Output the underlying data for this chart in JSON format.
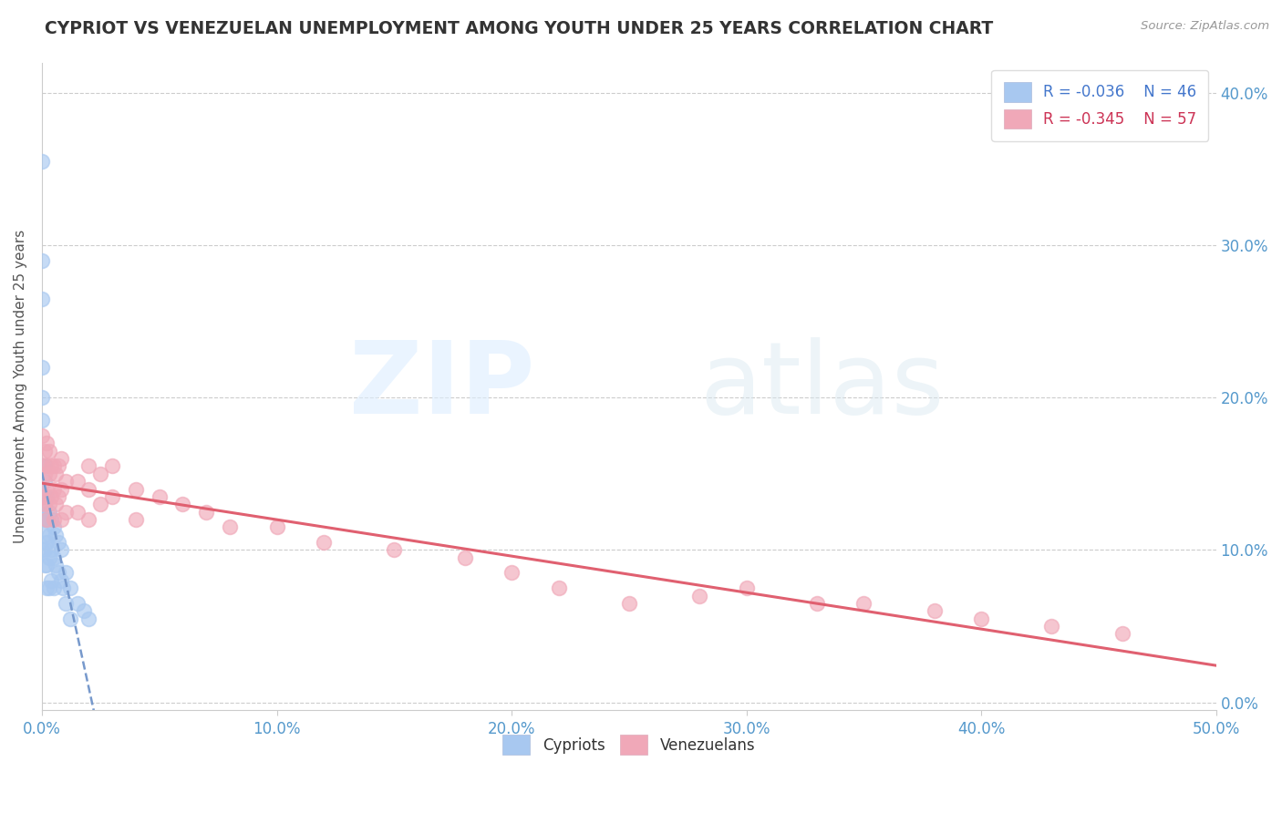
{
  "title": "CYPRIOT VS VENEZUELAN UNEMPLOYMENT AMONG YOUTH UNDER 25 YEARS CORRELATION CHART",
  "source": "Source: ZipAtlas.com",
  "ylabel": "Unemployment Among Youth under 25 years",
  "xlim": [
    0.0,
    0.5
  ],
  "ylim": [
    -0.005,
    0.42
  ],
  "cypriot_color": "#a8c8f0",
  "venezuelan_color": "#f0a8b8",
  "cypriot_line_color": "#7799cc",
  "venezuelan_line_color": "#e06070",
  "legend_r_cypriot": "R = -0.036",
  "legend_n_cypriot": "N = 46",
  "legend_r_venezuelan": "R = -0.345",
  "legend_n_venezuelan": "N = 57",
  "cypriot_x": [
    0.0,
    0.0,
    0.0,
    0.0,
    0.0,
    0.0,
    0.0,
    0.0,
    0.0,
    0.0,
    0.001,
    0.001,
    0.001,
    0.001,
    0.001,
    0.001,
    0.001,
    0.002,
    0.002,
    0.002,
    0.002,
    0.002,
    0.003,
    0.003,
    0.003,
    0.003,
    0.004,
    0.004,
    0.004,
    0.005,
    0.005,
    0.005,
    0.006,
    0.006,
    0.007,
    0.007,
    0.008,
    0.008,
    0.009,
    0.01,
    0.01,
    0.012,
    0.012,
    0.015,
    0.018,
    0.02
  ],
  "cypriot_y": [
    0.355,
    0.29,
    0.265,
    0.22,
    0.2,
    0.185,
    0.155,
    0.135,
    0.12,
    0.1,
    0.155,
    0.145,
    0.13,
    0.12,
    0.11,
    0.1,
    0.09,
    0.135,
    0.12,
    0.105,
    0.09,
    0.075,
    0.125,
    0.11,
    0.095,
    0.075,
    0.12,
    0.1,
    0.08,
    0.115,
    0.095,
    0.075,
    0.11,
    0.09,
    0.105,
    0.085,
    0.1,
    0.08,
    0.075,
    0.085,
    0.065,
    0.075,
    0.055,
    0.065,
    0.06,
    0.055
  ],
  "venezuelan_x": [
    0.0,
    0.0,
    0.0,
    0.001,
    0.001,
    0.001,
    0.002,
    0.002,
    0.002,
    0.002,
    0.003,
    0.003,
    0.003,
    0.004,
    0.004,
    0.005,
    0.005,
    0.005,
    0.006,
    0.006,
    0.007,
    0.007,
    0.008,
    0.008,
    0.008,
    0.01,
    0.01,
    0.015,
    0.015,
    0.02,
    0.02,
    0.02,
    0.025,
    0.025,
    0.03,
    0.03,
    0.04,
    0.04,
    0.05,
    0.06,
    0.07,
    0.08,
    0.1,
    0.12,
    0.15,
    0.18,
    0.2,
    0.22,
    0.25,
    0.28,
    0.3,
    0.33,
    0.35,
    0.38,
    0.4,
    0.43,
    0.46
  ],
  "venezuelan_y": [
    0.175,
    0.155,
    0.135,
    0.165,
    0.15,
    0.13,
    0.17,
    0.155,
    0.14,
    0.12,
    0.165,
    0.15,
    0.13,
    0.155,
    0.135,
    0.155,
    0.14,
    0.12,
    0.15,
    0.13,
    0.155,
    0.135,
    0.16,
    0.14,
    0.12,
    0.145,
    0.125,
    0.145,
    0.125,
    0.155,
    0.14,
    0.12,
    0.15,
    0.13,
    0.155,
    0.135,
    0.14,
    0.12,
    0.135,
    0.13,
    0.125,
    0.115,
    0.115,
    0.105,
    0.1,
    0.095,
    0.085,
    0.075,
    0.065,
    0.07,
    0.075,
    0.065,
    0.065,
    0.06,
    0.055,
    0.05,
    0.045
  ]
}
